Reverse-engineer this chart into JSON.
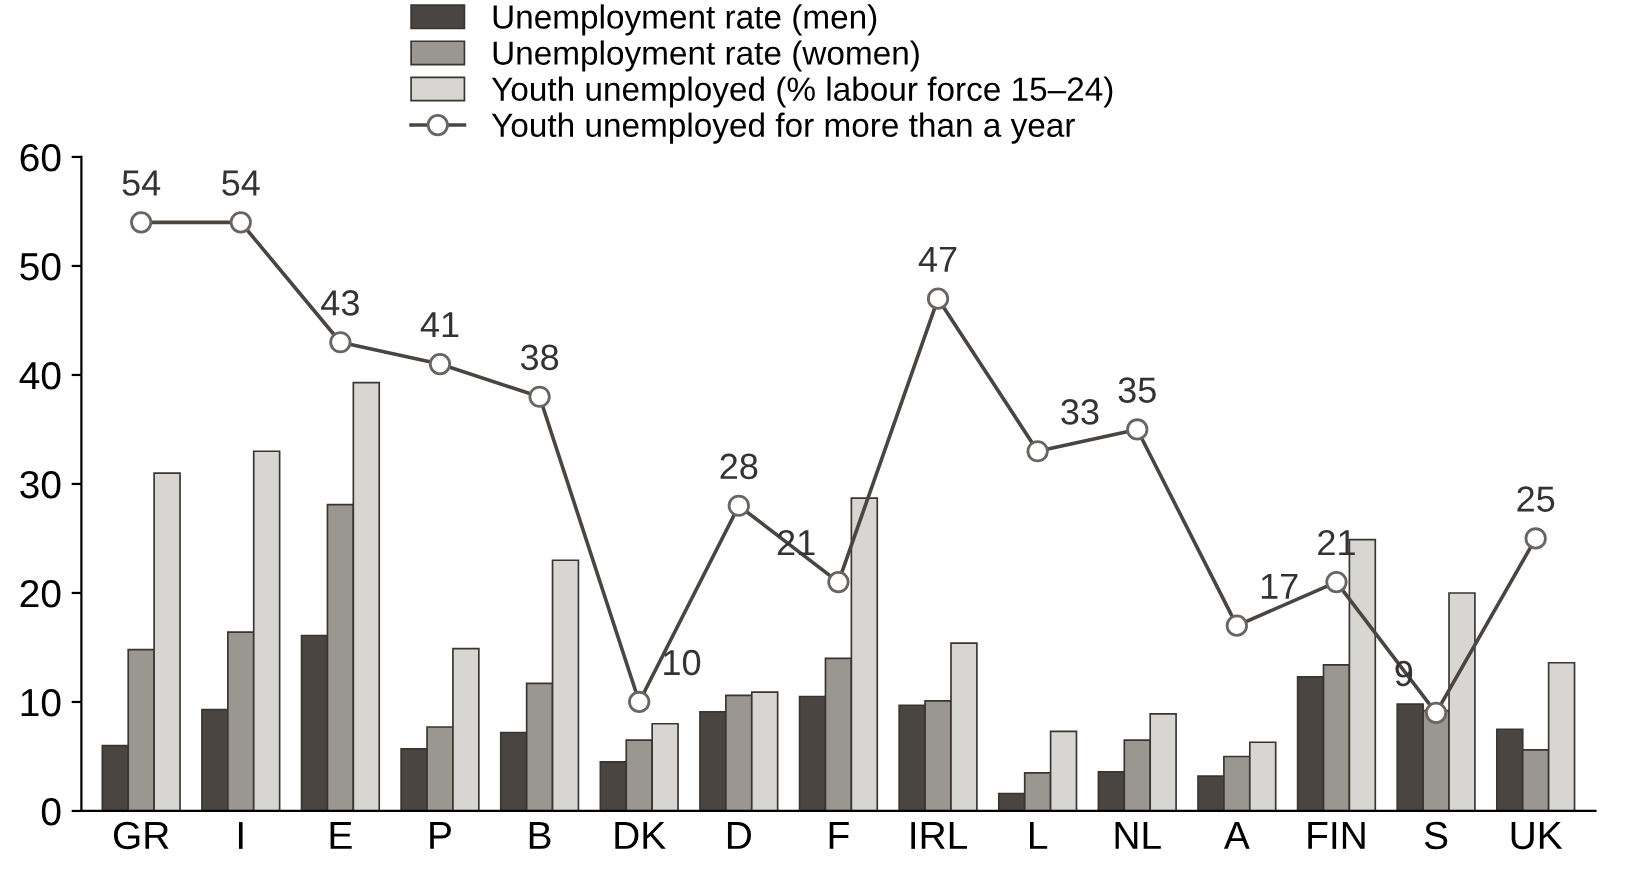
{
  "chart_data": {
    "type": "bar",
    "categories": [
      "GR",
      "I",
      "E",
      "P",
      "B",
      "DK",
      "D",
      "F",
      "IRL",
      "L",
      "NL",
      "A",
      "FIN",
      "S",
      "UK"
    ],
    "series": [
      {
        "name": "Unemployment rate (men)",
        "color": "#4a4540",
        "values": [
          6.0,
          9.3,
          16.1,
          5.7,
          7.2,
          4.5,
          9.1,
          10.5,
          9.7,
          1.6,
          3.6,
          3.2,
          12.3,
          9.8,
          7.5
        ]
      },
      {
        "name": "Unemployment rate (women)",
        "color": "#9a9690",
        "values": [
          14.8,
          16.4,
          28.1,
          7.7,
          11.7,
          6.5,
          10.6,
          14.0,
          10.1,
          3.5,
          6.5,
          5.0,
          13.4,
          9.2,
          5.6
        ]
      },
      {
        "name": "Youth unemployed (% labour force 15–24)",
        "color": "#d8d6d2",
        "values": [
          31.0,
          33.0,
          39.3,
          14.9,
          23.0,
          8.0,
          10.9,
          28.7,
          15.4,
          7.3,
          8.9,
          6.3,
          24.9,
          20.0,
          13.6
        ]
      },
      {
        "name": "Youth unemployed for more than a year",
        "type": "line",
        "color": "#4a4540",
        "marker": "circle",
        "values": [
          54,
          54,
          43,
          41,
          38,
          10,
          28,
          21,
          47,
          33,
          35,
          17,
          21,
          9,
          25
        ],
        "value_labels": [
          "54",
          "54",
          "43",
          "41",
          "38",
          "10",
          "28",
          "21",
          "47",
          "33",
          "35",
          "17",
          "21",
          "9",
          "25"
        ]
      }
    ],
    "ylim": [
      0,
      60
    ],
    "yticks": [
      0,
      10,
      20,
      30,
      40,
      50,
      60
    ],
    "legend": "top"
  }
}
